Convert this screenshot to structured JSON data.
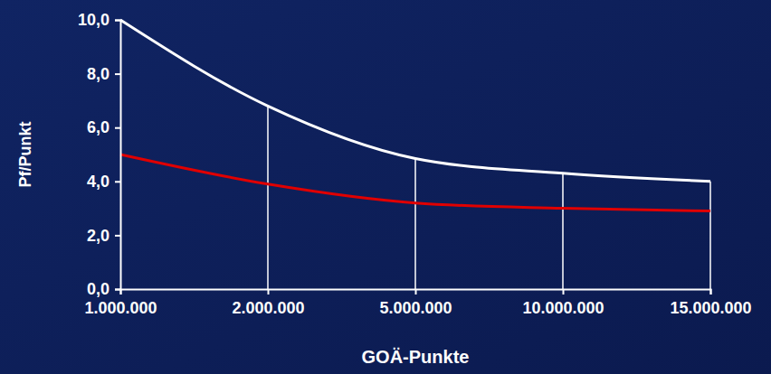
{
  "chart_data": {
    "type": "line",
    "y_label": "Pf/Punkt",
    "x_label": "GOÄ-Punkte",
    "categories": [
      "1.000.000",
      "2.000.000",
      "5.000.000",
      "10.000.000",
      "15.000.000"
    ],
    "series": [
      {
        "color": "#ffffff",
        "values": [
          10.0,
          6.8,
          4.85,
          4.3,
          4.0
        ]
      },
      {
        "color": "#e00000",
        "values": [
          5.0,
          3.9,
          3.2,
          3.0,
          2.9
        ]
      }
    ],
    "ylim": [
      0,
      10
    ],
    "yticks": [
      {
        "value": 0,
        "label": "0,0"
      },
      {
        "value": 2,
        "label": "2,0"
      },
      {
        "value": 4,
        "label": "4,0"
      },
      {
        "value": 6,
        "label": "6,0"
      },
      {
        "value": 8,
        "label": "8,0"
      },
      {
        "value": 10,
        "label": "10,0"
      }
    ],
    "grid": true
  }
}
